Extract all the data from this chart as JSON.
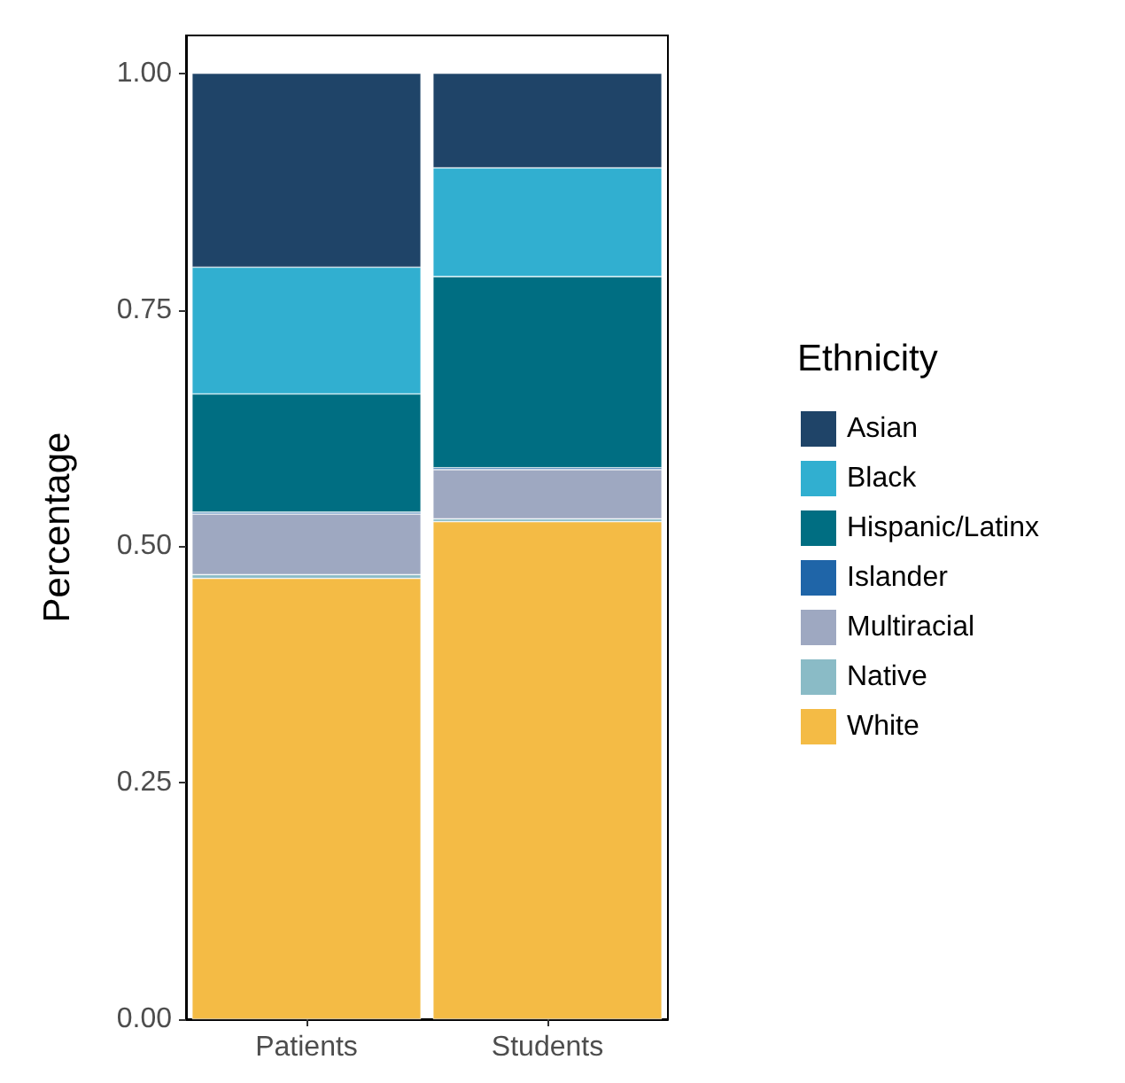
{
  "chart_data": {
    "type": "bar",
    "stacked": true,
    "ylabel": "Percentage",
    "legend_title": "Ethnicity",
    "legend": "right",
    "grid": false,
    "categories": [
      "Patients",
      "Students"
    ],
    "ylim": [
      0,
      1.04
    ],
    "yticks": [
      {
        "value": 0,
        "label": "0.00"
      },
      {
        "value": 0.25,
        "label": "0.25"
      },
      {
        "value": 0.5,
        "label": "0.50"
      },
      {
        "value": 0.75,
        "label": "0.75"
      },
      {
        "value": 1,
        "label": "1.00"
      }
    ],
    "series": [
      {
        "name": "White",
        "color": "#f4bb45",
        "values": [
          0.466,
          0.526
        ]
      },
      {
        "name": "Native",
        "color": "#8abbc6",
        "values": [
          0.004,
          0.003
        ]
      },
      {
        "name": "Multiracial",
        "color": "#9ea8c1",
        "values": [
          0.064,
          0.052
        ]
      },
      {
        "name": "Islander",
        "color": "#1f65a8",
        "values": [
          0.002,
          0.002
        ]
      },
      {
        "name": "Hispanic/Latinx",
        "color": "#006e82",
        "values": [
          0.125,
          0.202
        ]
      },
      {
        "name": "Black",
        "color": "#31afd0",
        "values": [
          0.134,
          0.115
        ]
      },
      {
        "name": "Asian",
        "color": "#1f4468",
        "values": [
          0.205,
          0.1
        ]
      }
    ]
  }
}
